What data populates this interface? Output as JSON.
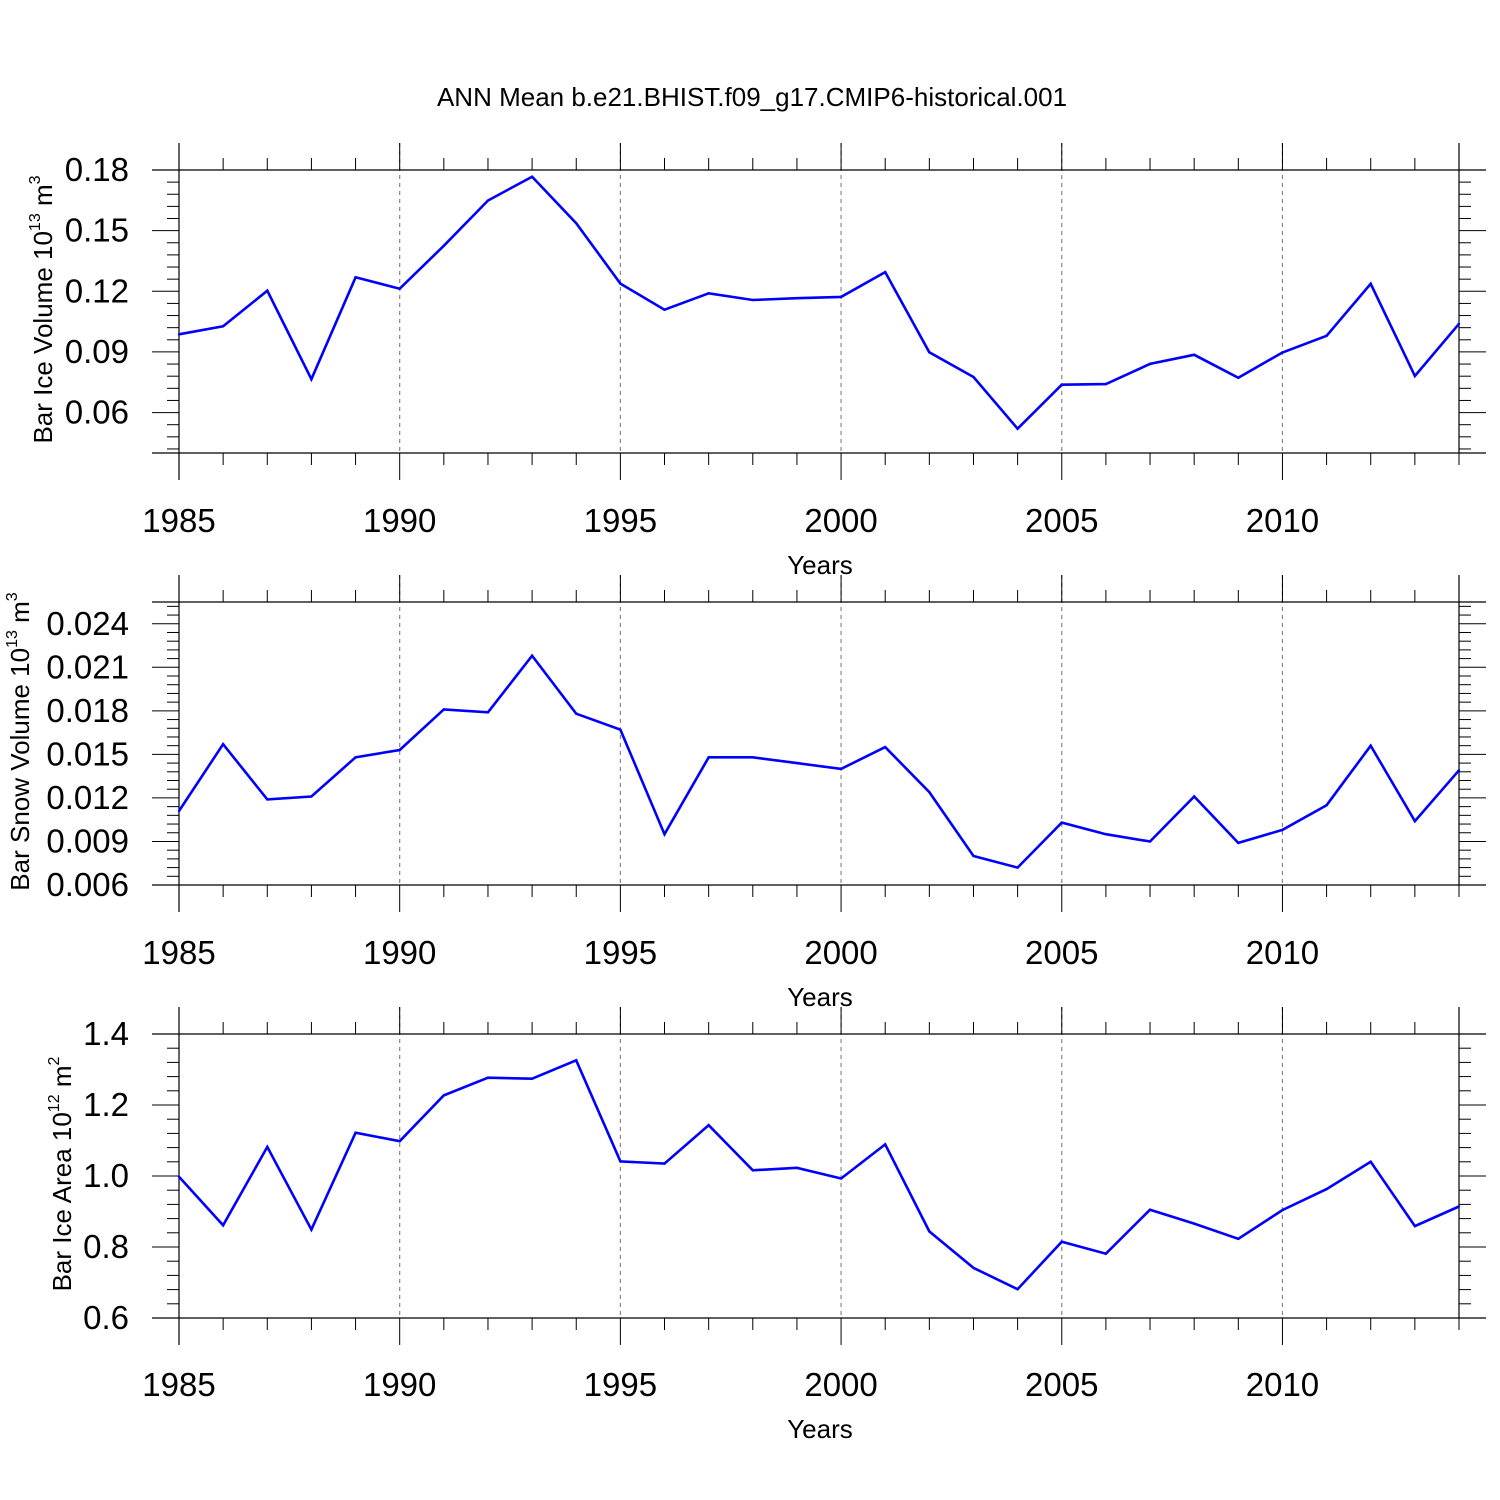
{
  "title": "ANN Mean b.e21.BHIST.f09_g17.CMIP6-historical.001",
  "line_color": "#0000ff",
  "chart_data": [
    {
      "type": "line",
      "xlabel": "Years",
      "ylabel": {
        "base": "Bar Ice Volume 10",
        "exp": "13",
        "unit": " m",
        "unit_exp": "3"
      },
      "xlim": [
        1985,
        2014
      ],
      "ylim": [
        0.04,
        0.18
      ],
      "xticks": [
        1985,
        1990,
        1995,
        2000,
        2005,
        2010
      ],
      "xtick_labels": [
        "1985",
        "1990",
        "1995",
        "2000",
        "2005",
        "2010"
      ],
      "yticks": [
        0.06,
        0.09,
        0.12,
        0.15,
        0.18
      ],
      "ytick_labels": [
        "0.06",
        "0.09",
        "0.12",
        "0.15",
        "0.18"
      ],
      "grid": "vertical dashed at major x ticks",
      "x": [
        1985,
        1986,
        1987,
        1988,
        1989,
        1990,
        1991,
        1992,
        1993,
        1994,
        1995,
        1996,
        1997,
        1998,
        1999,
        2000,
        2001,
        2002,
        2003,
        2004,
        2005,
        2006,
        2007,
        2008,
        2009,
        2010,
        2011,
        2012,
        2013,
        2014
      ],
      "y": [
        0.0987,
        0.1027,
        0.1203,
        0.0765,
        0.1269,
        0.1213,
        0.1425,
        0.1649,
        0.1767,
        0.1537,
        0.1238,
        0.1109,
        0.119,
        0.1157,
        0.1166,
        0.1172,
        0.1295,
        0.0898,
        0.0776,
        0.052,
        0.0738,
        0.0741,
        0.0841,
        0.0886,
        0.0772,
        0.0897,
        0.098,
        0.1237,
        0.0781,
        0.1039
      ]
    },
    {
      "type": "line",
      "xlabel": "Years",
      "ylabel": {
        "base": "Bar Snow Volume 10",
        "exp": "13",
        "unit": " m",
        "unit_exp": "3"
      },
      "xlim": [
        1985,
        2014
      ],
      "ylim": [
        0.006,
        0.0255
      ],
      "xticks": [
        1985,
        1990,
        1995,
        2000,
        2005,
        2010
      ],
      "xtick_labels": [
        "1985",
        "1990",
        "1995",
        "2000",
        "2005",
        "2010"
      ],
      "yticks": [
        0.006,
        0.009,
        0.012,
        0.015,
        0.018,
        0.021,
        0.024
      ],
      "ytick_labels": [
        "0.006",
        "0.009",
        "0.012",
        "0.015",
        "0.018",
        "0.021",
        "0.024"
      ],
      "grid": "vertical dashed at major x ticks",
      "x": [
        1985,
        1986,
        1987,
        1988,
        1989,
        1990,
        1991,
        1992,
        1993,
        1994,
        1995,
        1996,
        1997,
        1998,
        1999,
        2000,
        2001,
        2002,
        2003,
        2004,
        2005,
        2006,
        2007,
        2008,
        2009,
        2010,
        2011,
        2012,
        2013,
        2014
      ],
      "y": [
        0.0111,
        0.0157,
        0.0119,
        0.0121,
        0.0148,
        0.0153,
        0.0181,
        0.0179,
        0.0218,
        0.0178,
        0.0167,
        0.0095,
        0.0148,
        0.0148,
        0.0144,
        0.014,
        0.0155,
        0.0124,
        0.008,
        0.0072,
        0.0103,
        0.0095,
        0.009,
        0.0121,
        0.0089,
        0.0098,
        0.0115,
        0.0156,
        0.0104,
        0.0139
      ]
    },
    {
      "type": "line",
      "xlabel": "Years",
      "ylabel": {
        "base": "Bar Ice Area 10",
        "exp": "12",
        "unit": " m",
        "unit_exp": "2"
      },
      "xlim": [
        1985,
        2014
      ],
      "ylim": [
        0.6,
        1.4
      ],
      "xticks": [
        1985,
        1990,
        1995,
        2000,
        2005,
        2010
      ],
      "xtick_labels": [
        "1985",
        "1990",
        "1995",
        "2000",
        "2005",
        "2010"
      ],
      "yticks": [
        0.6,
        0.8,
        1.0,
        1.2,
        1.4
      ],
      "ytick_labels": [
        "0.6",
        "0.8",
        "1.0",
        "1.2",
        "1.4"
      ],
      "grid": "vertical dashed at major x ticks",
      "x": [
        1985,
        1986,
        1987,
        1988,
        1989,
        1990,
        1991,
        1992,
        1993,
        1994,
        1995,
        1996,
        1997,
        1998,
        1999,
        2000,
        2001,
        2002,
        2003,
        2004,
        2005,
        2006,
        2007,
        2008,
        2009,
        2010,
        2011,
        2012,
        2013,
        2014
      ],
      "y": [
        0.998,
        0.861,
        1.082,
        0.849,
        1.122,
        1.098,
        1.227,
        1.277,
        1.274,
        1.326,
        1.041,
        1.035,
        1.143,
        1.016,
        1.023,
        0.993,
        1.089,
        0.844,
        0.741,
        0.681,
        0.815,
        0.781,
        0.905,
        0.866,
        0.823,
        0.904,
        0.963,
        1.04,
        0.859,
        0.914
      ]
    }
  ]
}
